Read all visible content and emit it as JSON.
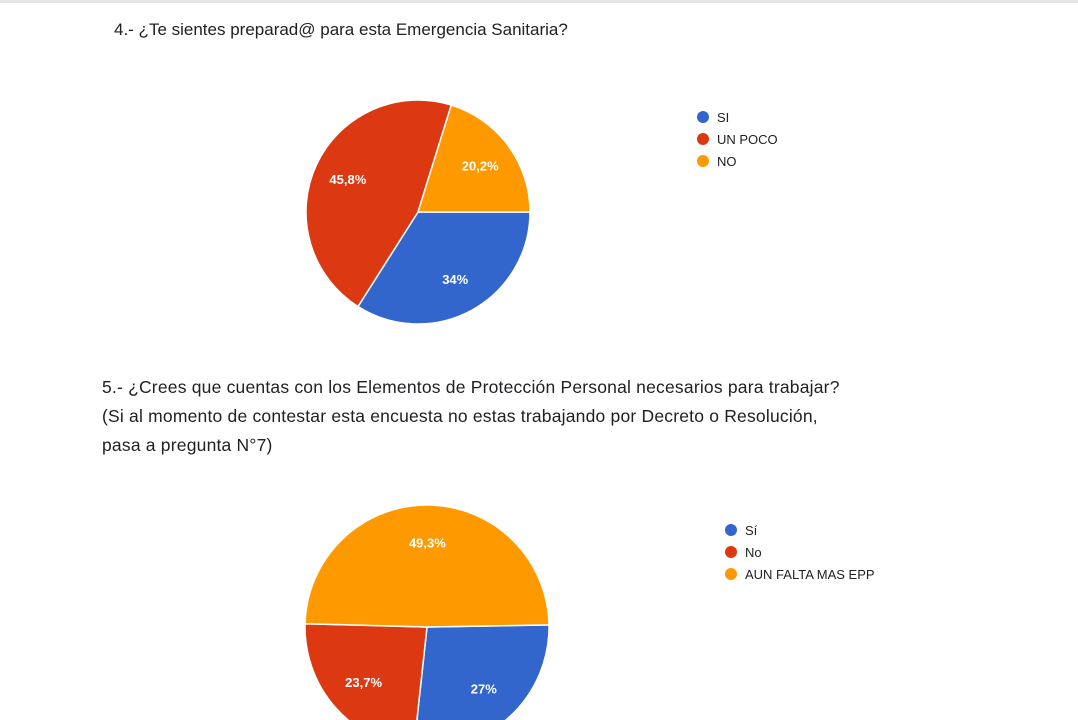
{
  "questions": [
    {
      "title": "4.- ¿Te sientes preparad@ para esta Emergencia Sanitaria?"
    },
    {
      "title_lines": [
        "5.- ¿Crees que cuentas con los Elementos de Protección Personal necesarios para trabajar?",
        "(Si al momento de contestar esta encuesta no estas trabajando por Decreto o Resolución,",
        "pasa a pregunta N°7)"
      ]
    }
  ],
  "chart_data": [
    {
      "type": "pie",
      "legend": "right",
      "slices": [
        {
          "label": "SI",
          "value": 34,
          "display": "34%",
          "color": "#3366cc"
        },
        {
          "label": "UN POCO",
          "value": 45.8,
          "display": "45,8%",
          "color": "#dc3912"
        },
        {
          "label": "NO",
          "value": 20.2,
          "display": "20,2%",
          "color": "#ff9900"
        }
      ]
    },
    {
      "type": "pie",
      "legend": "right",
      "slices": [
        {
          "label": "Sí",
          "value": 27,
          "display": "27%",
          "color": "#3366cc"
        },
        {
          "label": "No",
          "value": 23.7,
          "display": "23,7%",
          "color": "#dc3912"
        },
        {
          "label": "AUN FALTA MAS EPP",
          "value": 49.3,
          "display": "49,3%",
          "color": "#ff9900"
        }
      ]
    }
  ]
}
